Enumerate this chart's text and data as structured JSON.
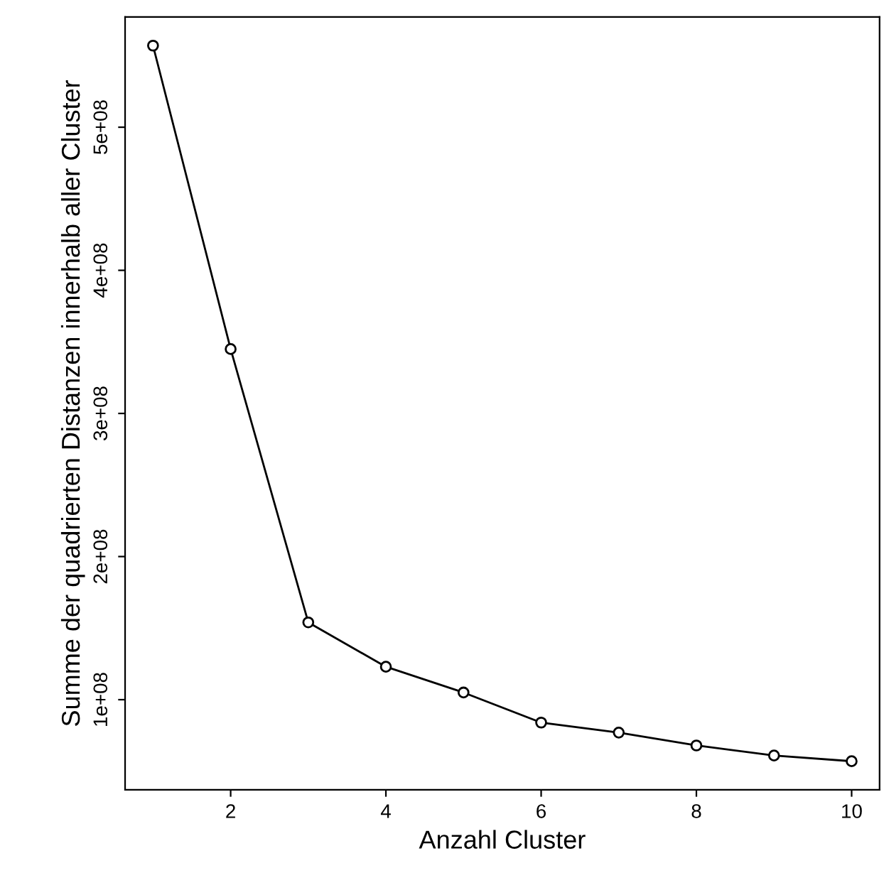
{
  "chart_data": {
    "type": "line",
    "xlabel": "Anzahl Cluster",
    "ylabel": "Summe der quadrierten Distanzen innerhalb aller Cluster",
    "x": [
      1,
      2,
      3,
      4,
      5,
      6,
      7,
      8,
      9,
      10
    ],
    "series": [
      {
        "color": "#000000",
        "values": [
          557000000,
          345000000,
          154000000,
          123000000,
          105000000,
          84000000,
          77000000,
          68000000,
          61000000,
          57000000
        ]
      }
    ],
    "xlim": [
      0.64,
      10.36
    ],
    "ylim": [
      37000000,
      577000000
    ],
    "xticks": [
      2,
      4,
      6,
      8,
      10
    ],
    "yticks": [
      {
        "value": 100000000,
        "label": "1e+08"
      },
      {
        "value": 200000000,
        "label": "2e+08"
      },
      {
        "value": 300000000,
        "label": "3e+08"
      },
      {
        "value": 400000000,
        "label": "4e+08"
      },
      {
        "value": 500000000,
        "label": "5e+08"
      }
    ],
    "marker": "circle",
    "line_style": "solid",
    "grid": false,
    "legend": false
  }
}
